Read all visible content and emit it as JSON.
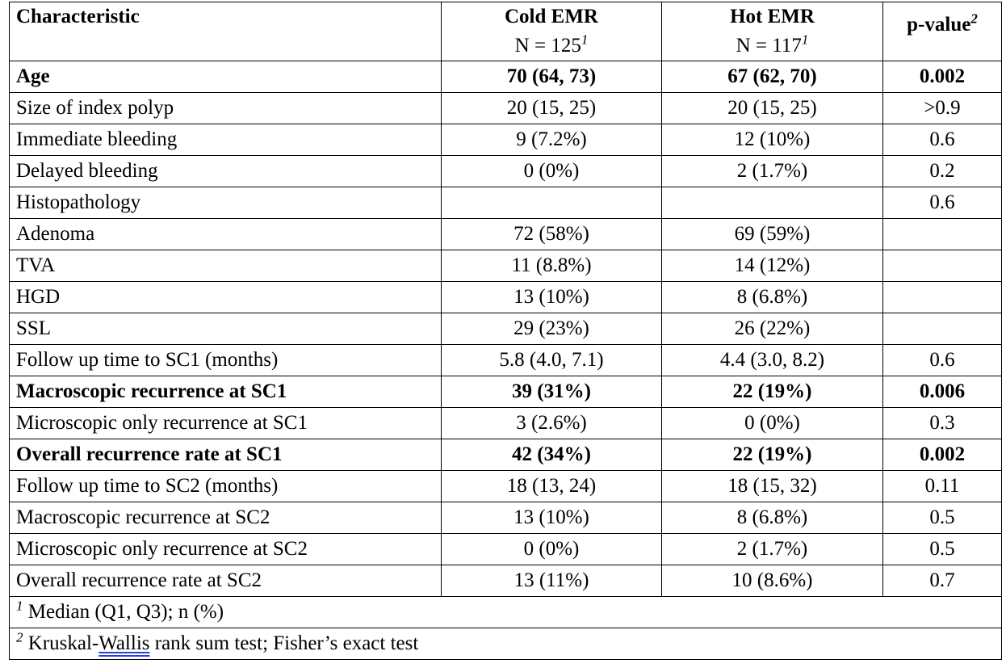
{
  "header": {
    "characteristic": "Characteristic",
    "cold": "Cold EMR",
    "cold_n": "N = 125",
    "cold_n_sup": "1",
    "hot": "Hot EMR",
    "hot_n": "N = 117",
    "hot_n_sup": "1",
    "pvalue": "p-value",
    "pvalue_sup": "2"
  },
  "rows": [
    {
      "label": "Age",
      "cold": "70 (64, 73)",
      "hot": "67 (62, 70)",
      "p": "0.002",
      "bold": true,
      "indent": 1
    },
    {
      "label": "Size of index polyp",
      "cold": "20 (15, 25)",
      "hot": "20 (15, 25)",
      "p": ">0.9",
      "bold": false,
      "indent": 1
    },
    {
      "label": "Immediate bleeding",
      "cold": "9 (7.2%)",
      "hot": "12 (10%)",
      "p": "0.6",
      "bold": false,
      "indent": 1
    },
    {
      "label": "Delayed bleeding",
      "cold": "0 (0%)",
      "hot": "2 (1.7%)",
      "p": "0.2",
      "bold": false,
      "indent": 1
    },
    {
      "label": "Histopathology",
      "cold": "",
      "hot": "",
      "p": "0.6",
      "bold": false,
      "indent": 1
    },
    {
      "label": "Adenoma",
      "cold": "72 (58%)",
      "hot": "69 (59%)",
      "p": "",
      "bold": false,
      "indent": 2
    },
    {
      "label": "TVA",
      "cold": "11 (8.8%)",
      "hot": "14 (12%)",
      "p": "",
      "bold": false,
      "indent": 3
    },
    {
      "label": "HGD",
      "cold": "13 (10%)",
      "hot": "8 (6.8%)",
      "p": "",
      "bold": false,
      "indent": 3
    },
    {
      "label": "SSL",
      "cold": "29 (23%)",
      "hot": "26 (22%)",
      "p": "",
      "bold": false,
      "indent": 3
    },
    {
      "label": "Follow up time to SC1 (months)",
      "cold": "5.8 (4.0, 7.1)",
      "hot": "4.4 (3.0, 8.2)",
      "p": "0.6",
      "bold": false,
      "indent": 1
    },
    {
      "label": "Macroscopic recurrence at SC1",
      "cold": "39 (31%)",
      "hot": "22 (19%)",
      "p": "0.006",
      "bold": true,
      "indent": 1
    },
    {
      "label": "Microscopic only recurrence at SC1",
      "cold": "3 (2.6%)",
      "hot": "0 (0%)",
      "p": "0.3",
      "bold": false,
      "indent": 1
    },
    {
      "label": "Overall recurrence rate at SC1",
      "cold": "42 (34%)",
      "hot": "22 (19%)",
      "p": "0.002",
      "bold": true,
      "indent": 1
    },
    {
      "label": "Follow up time to SC2 (months)",
      "cold": "18 (13, 24)",
      "hot": "18 (15, 32)",
      "p": "0.11",
      "bold": false,
      "indent": 1
    },
    {
      "label": "Macroscopic recurrence at SC2",
      "cold": "13 (10%)",
      "hot": "8 (6.8%)",
      "p": "0.5",
      "bold": false,
      "indent": 1
    },
    {
      "label": "Microscopic only recurrence at SC2",
      "cold": "0 (0%)",
      "hot": "2 (1.7%)",
      "p": "0.5",
      "bold": false,
      "indent": 1
    },
    {
      "label": "Overall recurrence rate at SC2",
      "cold": "13 (11%)",
      "hot": "10 (8.6%)",
      "p": "0.7",
      "bold": false,
      "indent": 1
    }
  ],
  "footnotes": {
    "fn1_mark": "1",
    "fn1_text": " Median (Q1, Q3); n (%)",
    "fn2_mark": "2",
    "fn2_pre": " Kruskal-",
    "fn2_word": "Wallis",
    "fn2_post": " rank sum test; Fisher’s exact test"
  }
}
